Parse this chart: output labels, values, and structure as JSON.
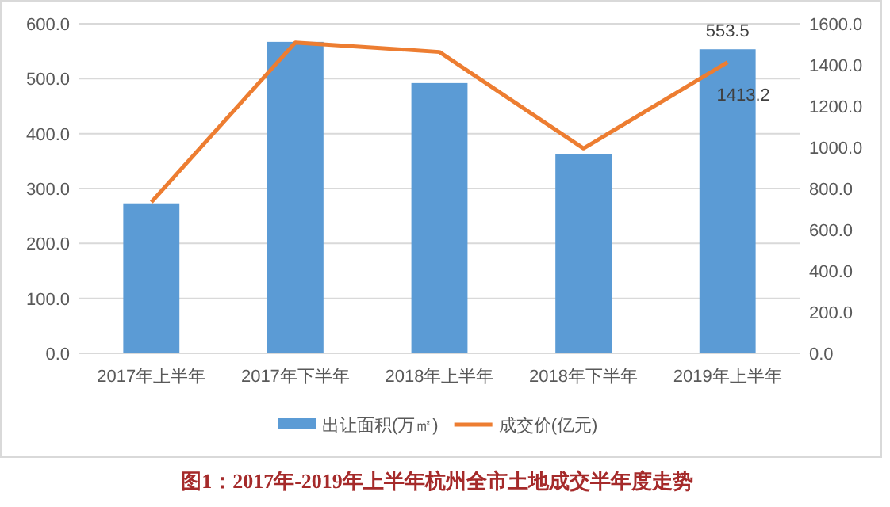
{
  "chart_data": {
    "type": "bar",
    "title": "图1：2017年-2019年上半年杭州全市土地成交半年度走势",
    "categories": [
      "2017年上半年",
      "2017年下半年",
      "2018年上半年",
      "2018年下半年",
      "2019年上半年"
    ],
    "series": [
      {
        "name": "出让面积(万㎡)",
        "color": "#5b9bd5",
        "values": [
          273,
          567,
          492,
          363,
          553.5
        ],
        "value_labels": [
          null,
          null,
          null,
          null,
          "553.5"
        ]
      },
      {
        "name": "成交价(亿元)",
        "type": "line",
        "axis": "y2",
        "color": "#ed7d31",
        "values": [
          734,
          1509,
          1463,
          995,
          1413.2
        ],
        "value_labels": [
          null,
          null,
          null,
          null,
          "1413.2"
        ]
      }
    ],
    "ylim": [
      0,
      600
    ],
    "yticks": [
      {
        "value": 0,
        "label": "0.0"
      },
      {
        "value": 100,
        "label": "100.0"
      },
      {
        "value": 200,
        "label": "200.0"
      },
      {
        "value": 300,
        "label": "300.0"
      },
      {
        "value": 400,
        "label": "400.0"
      },
      {
        "value": 500,
        "label": "500.0"
      },
      {
        "value": 600,
        "label": "600.0"
      }
    ],
    "y2lim": [
      0,
      1600
    ],
    "y2ticks": [
      {
        "value": 0,
        "label": "0.0"
      },
      {
        "value": 200,
        "label": "200.0"
      },
      {
        "value": 400,
        "label": "400.0"
      },
      {
        "value": 600,
        "label": "600.0"
      },
      {
        "value": 800,
        "label": "800.0"
      },
      {
        "value": 1000,
        "label": "1000.0"
      },
      {
        "value": 1200,
        "label": "1200.0"
      },
      {
        "value": 1400,
        "label": "1400.0"
      },
      {
        "value": 1600,
        "label": "1600.0"
      }
    ],
    "grid": "y",
    "legend": "bottom",
    "marker": "none",
    "line_style": "solid"
  }
}
